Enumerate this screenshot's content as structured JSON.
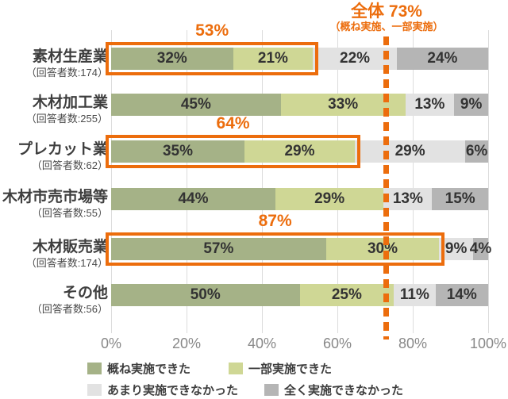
{
  "chart_data": {
    "type": "bar",
    "orientation": "horizontal-stacked",
    "xlim": [
      0,
      100
    ],
    "x_ticks": [
      "0%",
      "20%",
      "40%",
      "60%",
      "80%",
      "100%"
    ],
    "grid": true,
    "series_names": [
      "概ね実施できた",
      "一部実施できた",
      "あまり実施できなかった",
      "全く実施できなかった"
    ],
    "series_colors": [
      "#a5b287",
      "#cfd795",
      "#e2e2e2",
      "#b5b5b5"
    ],
    "rows": [
      {
        "label": "素材生産業",
        "respondents": "（回答者数:174）",
        "values": [
          32,
          21,
          22,
          24
        ],
        "value_labels": [
          "32%",
          "21%",
          "22%",
          "24%"
        ],
        "highlight": {
          "label": "53%",
          "sum": 53
        }
      },
      {
        "label": "木材加工業",
        "respondents": "（回答者数:255）",
        "values": [
          45,
          33,
          13,
          9
        ],
        "value_labels": [
          "45%",
          "33%",
          "13%",
          "9%"
        ],
        "highlight": null
      },
      {
        "label": "プレカット業",
        "respondents": "（回答者数:62）",
        "values": [
          35,
          29,
          29,
          6
        ],
        "value_labels": [
          "35%",
          "29%",
          "29%",
          "6%"
        ],
        "highlight": {
          "label": "64%",
          "sum": 64
        }
      },
      {
        "label": "木材市売市場等",
        "respondents": "（回答者数:55）",
        "values": [
          44,
          29,
          13,
          15
        ],
        "value_labels": [
          "44%",
          "29%",
          "13%",
          "15%"
        ],
        "highlight": null
      },
      {
        "label": "木材販売業",
        "respondents": "（回答者数:174）",
        "values": [
          57,
          30,
          9,
          4
        ],
        "value_labels": [
          "57%",
          "30%",
          "9%",
          "4%"
        ],
        "highlight": {
          "label": "87%",
          "sum": 87
        }
      },
      {
        "label": "その他",
        "respondents": "（回答者数:56）",
        "values": [
          50,
          25,
          11,
          14
        ],
        "value_labels": [
          "50%",
          "25%",
          "11%",
          "14%"
        ],
        "highlight": null
      }
    ],
    "overall_line": {
      "value": 73,
      "label": "全体 73%",
      "sublabel": "（概ね実施、一部実施）",
      "color": "#ec6d0d",
      "style": "dashed"
    },
    "legend": [
      {
        "label": "概ね実施できた",
        "color": "#a5b287"
      },
      {
        "label": "一部実施できた",
        "color": "#cfd795"
      },
      {
        "label": "あまり実施できなかった",
        "color": "#e2e2e2"
      },
      {
        "label": "全く実施できなかった",
        "color": "#b5b5b5"
      }
    ],
    "colors": {
      "accent_orange": "#ec6d0d",
      "segment_text": "#333333",
      "axis_text": "#888888",
      "label_text": "#3e3e3e",
      "gridline": "#dcdcdc"
    }
  }
}
